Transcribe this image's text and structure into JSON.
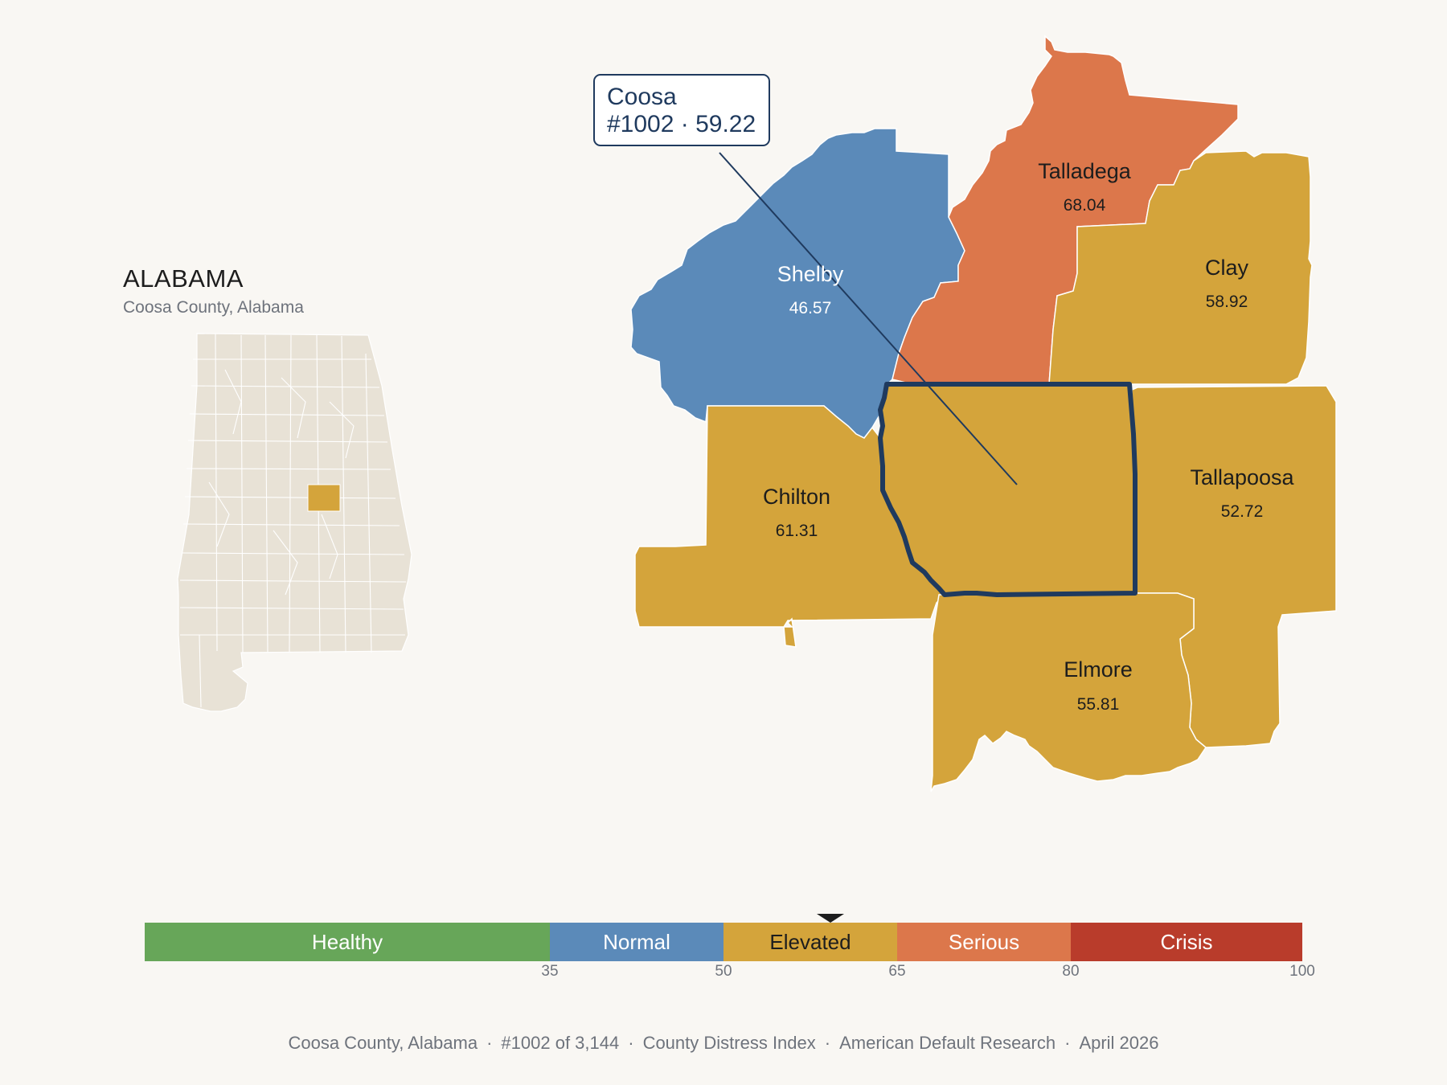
{
  "inset": {
    "state_name": "ALABAMA",
    "subtitle": "Coosa County, Alabama"
  },
  "tooltip": {
    "line1": "Coosa",
    "line2": "#1002 · 59.22"
  },
  "counties": [
    {
      "name": "Shelby",
      "value": "46.57",
      "band": "Normal"
    },
    {
      "name": "Talladega",
      "value": "68.04",
      "band": "Serious"
    },
    {
      "name": "Clay",
      "value": "58.92",
      "band": "Elevated"
    },
    {
      "name": "Chilton",
      "value": "61.31",
      "band": "Elevated"
    },
    {
      "name": "Tallapoosa",
      "value": "52.72",
      "band": "Elevated"
    },
    {
      "name": "Elmore",
      "value": "55.81",
      "band": "Elevated"
    },
    {
      "name": "Coosa",
      "value": "59.22",
      "band": "Elevated",
      "highlighted": true
    }
  ],
  "scale": {
    "bands": [
      {
        "label": "Healthy",
        "color": "#67a659"
      },
      {
        "label": "Normal",
        "color": "#5b8ab9"
      },
      {
        "label": "Elevated",
        "color": "#d4a43b"
      },
      {
        "label": "Serious",
        "color": "#dc774b"
      },
      {
        "label": "Crisis",
        "color": "#b93c2b"
      }
    ],
    "ticks": [
      "35",
      "50",
      "65",
      "80",
      "100"
    ],
    "marker_value": 59.22
  },
  "colors": {
    "normal": "#5b8ab9",
    "elevated": "#d4a43b",
    "serious": "#dc774b",
    "highlight_outline": "#1f3a5e",
    "inset_fill": "#e8e2d6"
  },
  "footer": {
    "county": "Coosa County, Alabama",
    "rank": "#1002 of 3,144",
    "index": "County Distress Index",
    "org": "American Default Research",
    "date": "April 2026"
  }
}
